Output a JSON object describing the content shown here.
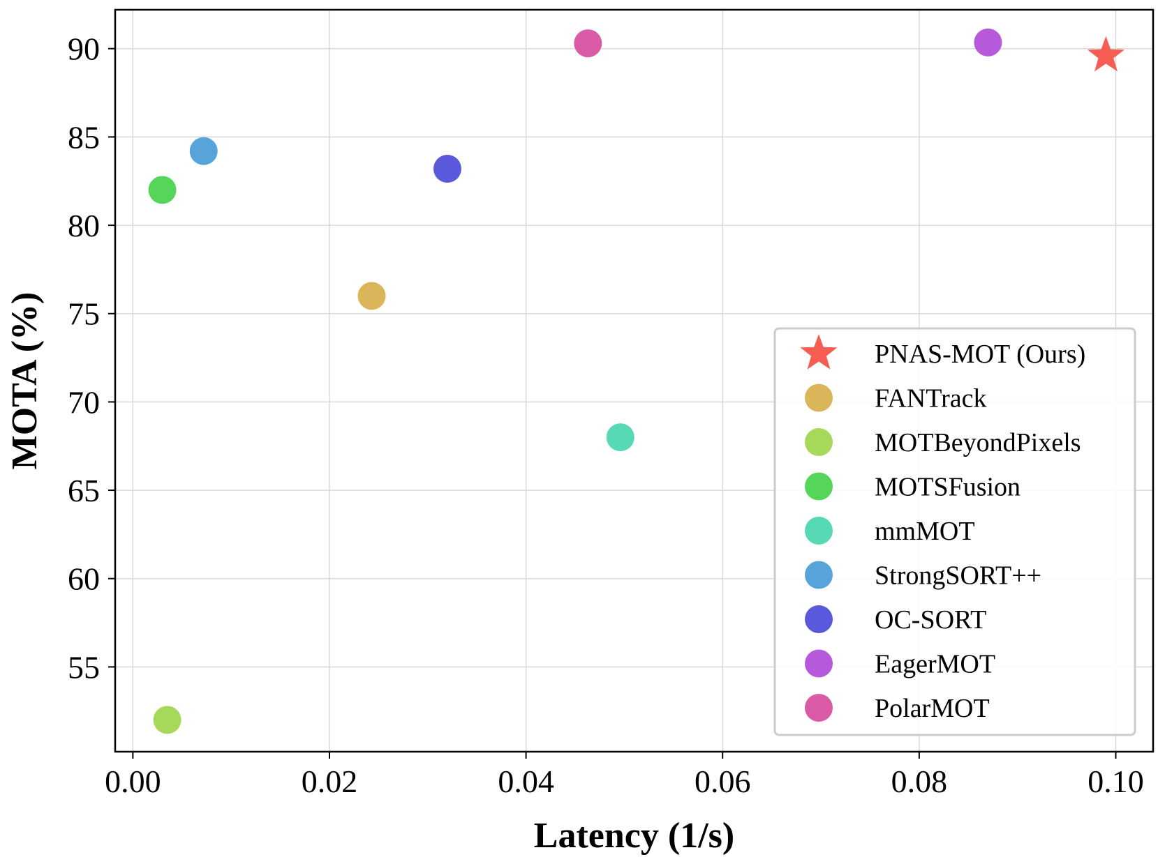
{
  "chart_data": {
    "type": "scatter",
    "xlabel": "Latency (1/s)",
    "ylabel": "MOTA (%)",
    "xlim": [
      -0.0018,
      0.1038
    ],
    "ylim": [
      50.2,
      92.2
    ],
    "xticks": [
      0.0,
      0.02,
      0.04,
      0.06,
      0.08,
      0.1
    ],
    "xtick_labels": [
      "0.00",
      "0.02",
      "0.04",
      "0.06",
      "0.08",
      "0.10"
    ],
    "yticks": [
      55,
      60,
      65,
      70,
      75,
      80,
      85,
      90
    ],
    "ytick_labels": [
      "55",
      "60",
      "65",
      "70",
      "75",
      "80",
      "85",
      "90"
    ],
    "grid": true,
    "legend_position": "lower-right",
    "series": [
      {
        "name": "PNAS-MOT (Ours)",
        "x": 0.099,
        "y": 89.6,
        "marker": "star",
        "color": "#F65E54"
      },
      {
        "name": "FANTrack",
        "x": 0.0243,
        "y": 76.0,
        "marker": "circle",
        "color": "#DBB55A"
      },
      {
        "name": "MOTBeyondPixels",
        "x": 0.0035,
        "y": 52.0,
        "marker": "circle",
        "color": "#A6D85A"
      },
      {
        "name": "MOTSFusion",
        "x": 0.003,
        "y": 82.0,
        "marker": "circle",
        "color": "#55D65A"
      },
      {
        "name": "mmMOT",
        "x": 0.0496,
        "y": 68.0,
        "marker": "circle",
        "color": "#57D9B6"
      },
      {
        "name": "StrongSORT++",
        "x": 0.0072,
        "y": 84.2,
        "marker": "circle",
        "color": "#57A4DB"
      },
      {
        "name": "OC-SORT",
        "x": 0.032,
        "y": 83.2,
        "marker": "circle",
        "color": "#5A59DC"
      },
      {
        "name": "EagerMOT",
        "x": 0.087,
        "y": 90.35,
        "marker": "circle",
        "color": "#B659DB"
      },
      {
        "name": "PolarMOT",
        "x": 0.0463,
        "y": 90.3,
        "marker": "circle",
        "color": "#DB5AA6"
      }
    ]
  }
}
